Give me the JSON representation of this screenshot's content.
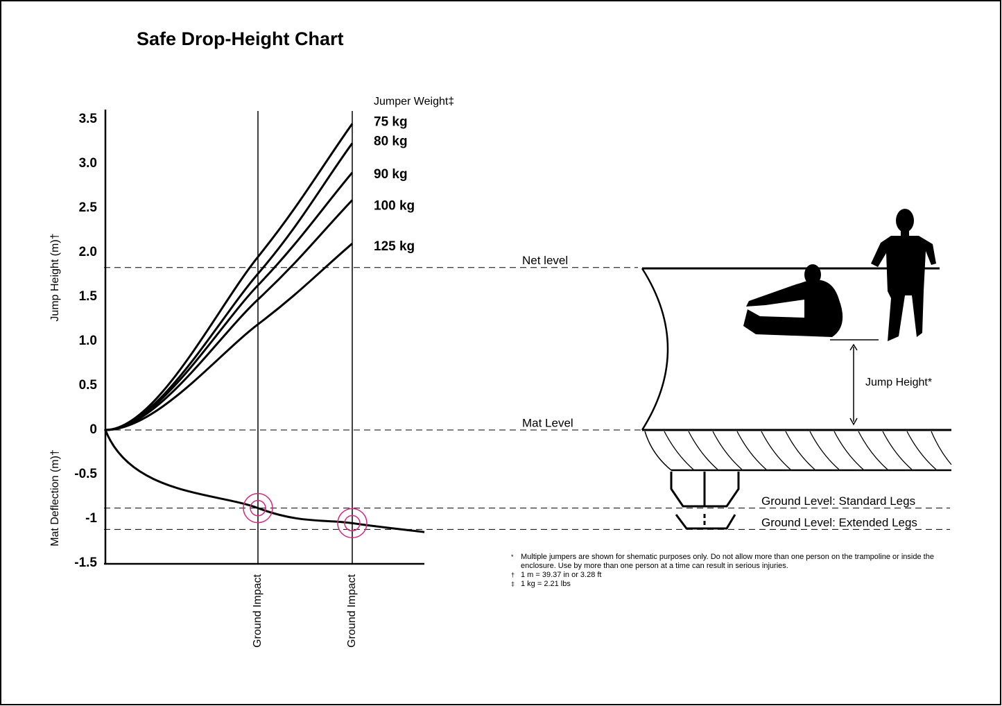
{
  "chart_data": {
    "type": "line",
    "title": "Safe Drop-Height Chart",
    "ylabel": "Jump Height (m)†",
    "ylabel2": "Mat Deflection (m)†",
    "legend_title": "Jumper Weight‡",
    "categories": [
      null,
      "Ground Impact",
      "Ground Impact",
      null
    ],
    "ylim": [
      -1.5,
      3.5
    ],
    "yticks": [
      3.5,
      {
        "value": 3,
        "label": "3.0"
      },
      2.5,
      {
        "value": 2,
        "label": "2.0"
      },
      1.5,
      {
        "value": 1,
        "label": "1.0"
      },
      0.5,
      0,
      -0.5,
      -1,
      -1.5
    ],
    "series": [
      {
        "name": "75 kg",
        "color": "#000000",
        "values": [
          0,
          1.95,
          3.45,
          null
        ]
      },
      {
        "name": "80 kg",
        "color": "#000000",
        "values": [
          0,
          1.76,
          3.23,
          null
        ]
      },
      {
        "name": "90 kg",
        "color": "#000000",
        "values": [
          0,
          1.63,
          2.9,
          null
        ]
      },
      {
        "name": "100 kg",
        "color": "#000000",
        "values": [
          0,
          1.47,
          2.59,
          null
        ]
      },
      {
        "name": "125 kg",
        "color": "#000000",
        "values": [
          0,
          1.19,
          2.1,
          null
        ]
      },
      {
        "color": "#000000",
        "values": [
          0,
          -0.88,
          -1.05,
          -1.15
        ]
      }
    ],
    "impact_marker_color": "#d6287f",
    "reference_lines": [
      {
        "label": "Net level",
        "value": 1.83
      },
      {
        "label": "Mat Level",
        "value": 0
      },
      {
        "label": "Ground Level: Standard Legs",
        "value": -0.88
      },
      {
        "label": "Ground Level: Extended Legs",
        "value": -1.12
      }
    ]
  },
  "diagram": {
    "jump_height_label": "Jump Height*"
  },
  "footnotes": [
    {
      "mark": "*",
      "text": "Multiple jumpers are shown for shematic purposes only. Do not allow more than one person on the trampoline or inside the enclosure. Use by more than one person at a time can result in serious injuries."
    },
    {
      "mark": "†",
      "text": "1 m = 39.37 in or 3.28 ft"
    },
    {
      "mark": "‡",
      "text": "1 kg = 2.21 lbs"
    }
  ]
}
